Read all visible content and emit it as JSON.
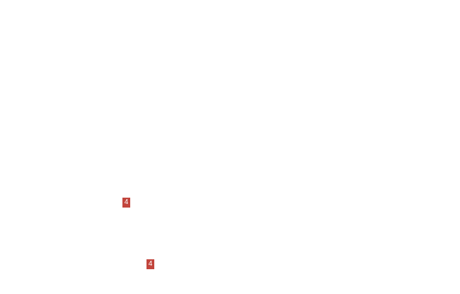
{
  "page": {
    "background_color": "#ffffff"
  },
  "markers": [
    {
      "label": "4",
      "color": "#c2453d",
      "text_color": "#ffffff"
    },
    {
      "label": "4",
      "color": "#c2453d",
      "text_color": "#ffffff"
    }
  ]
}
